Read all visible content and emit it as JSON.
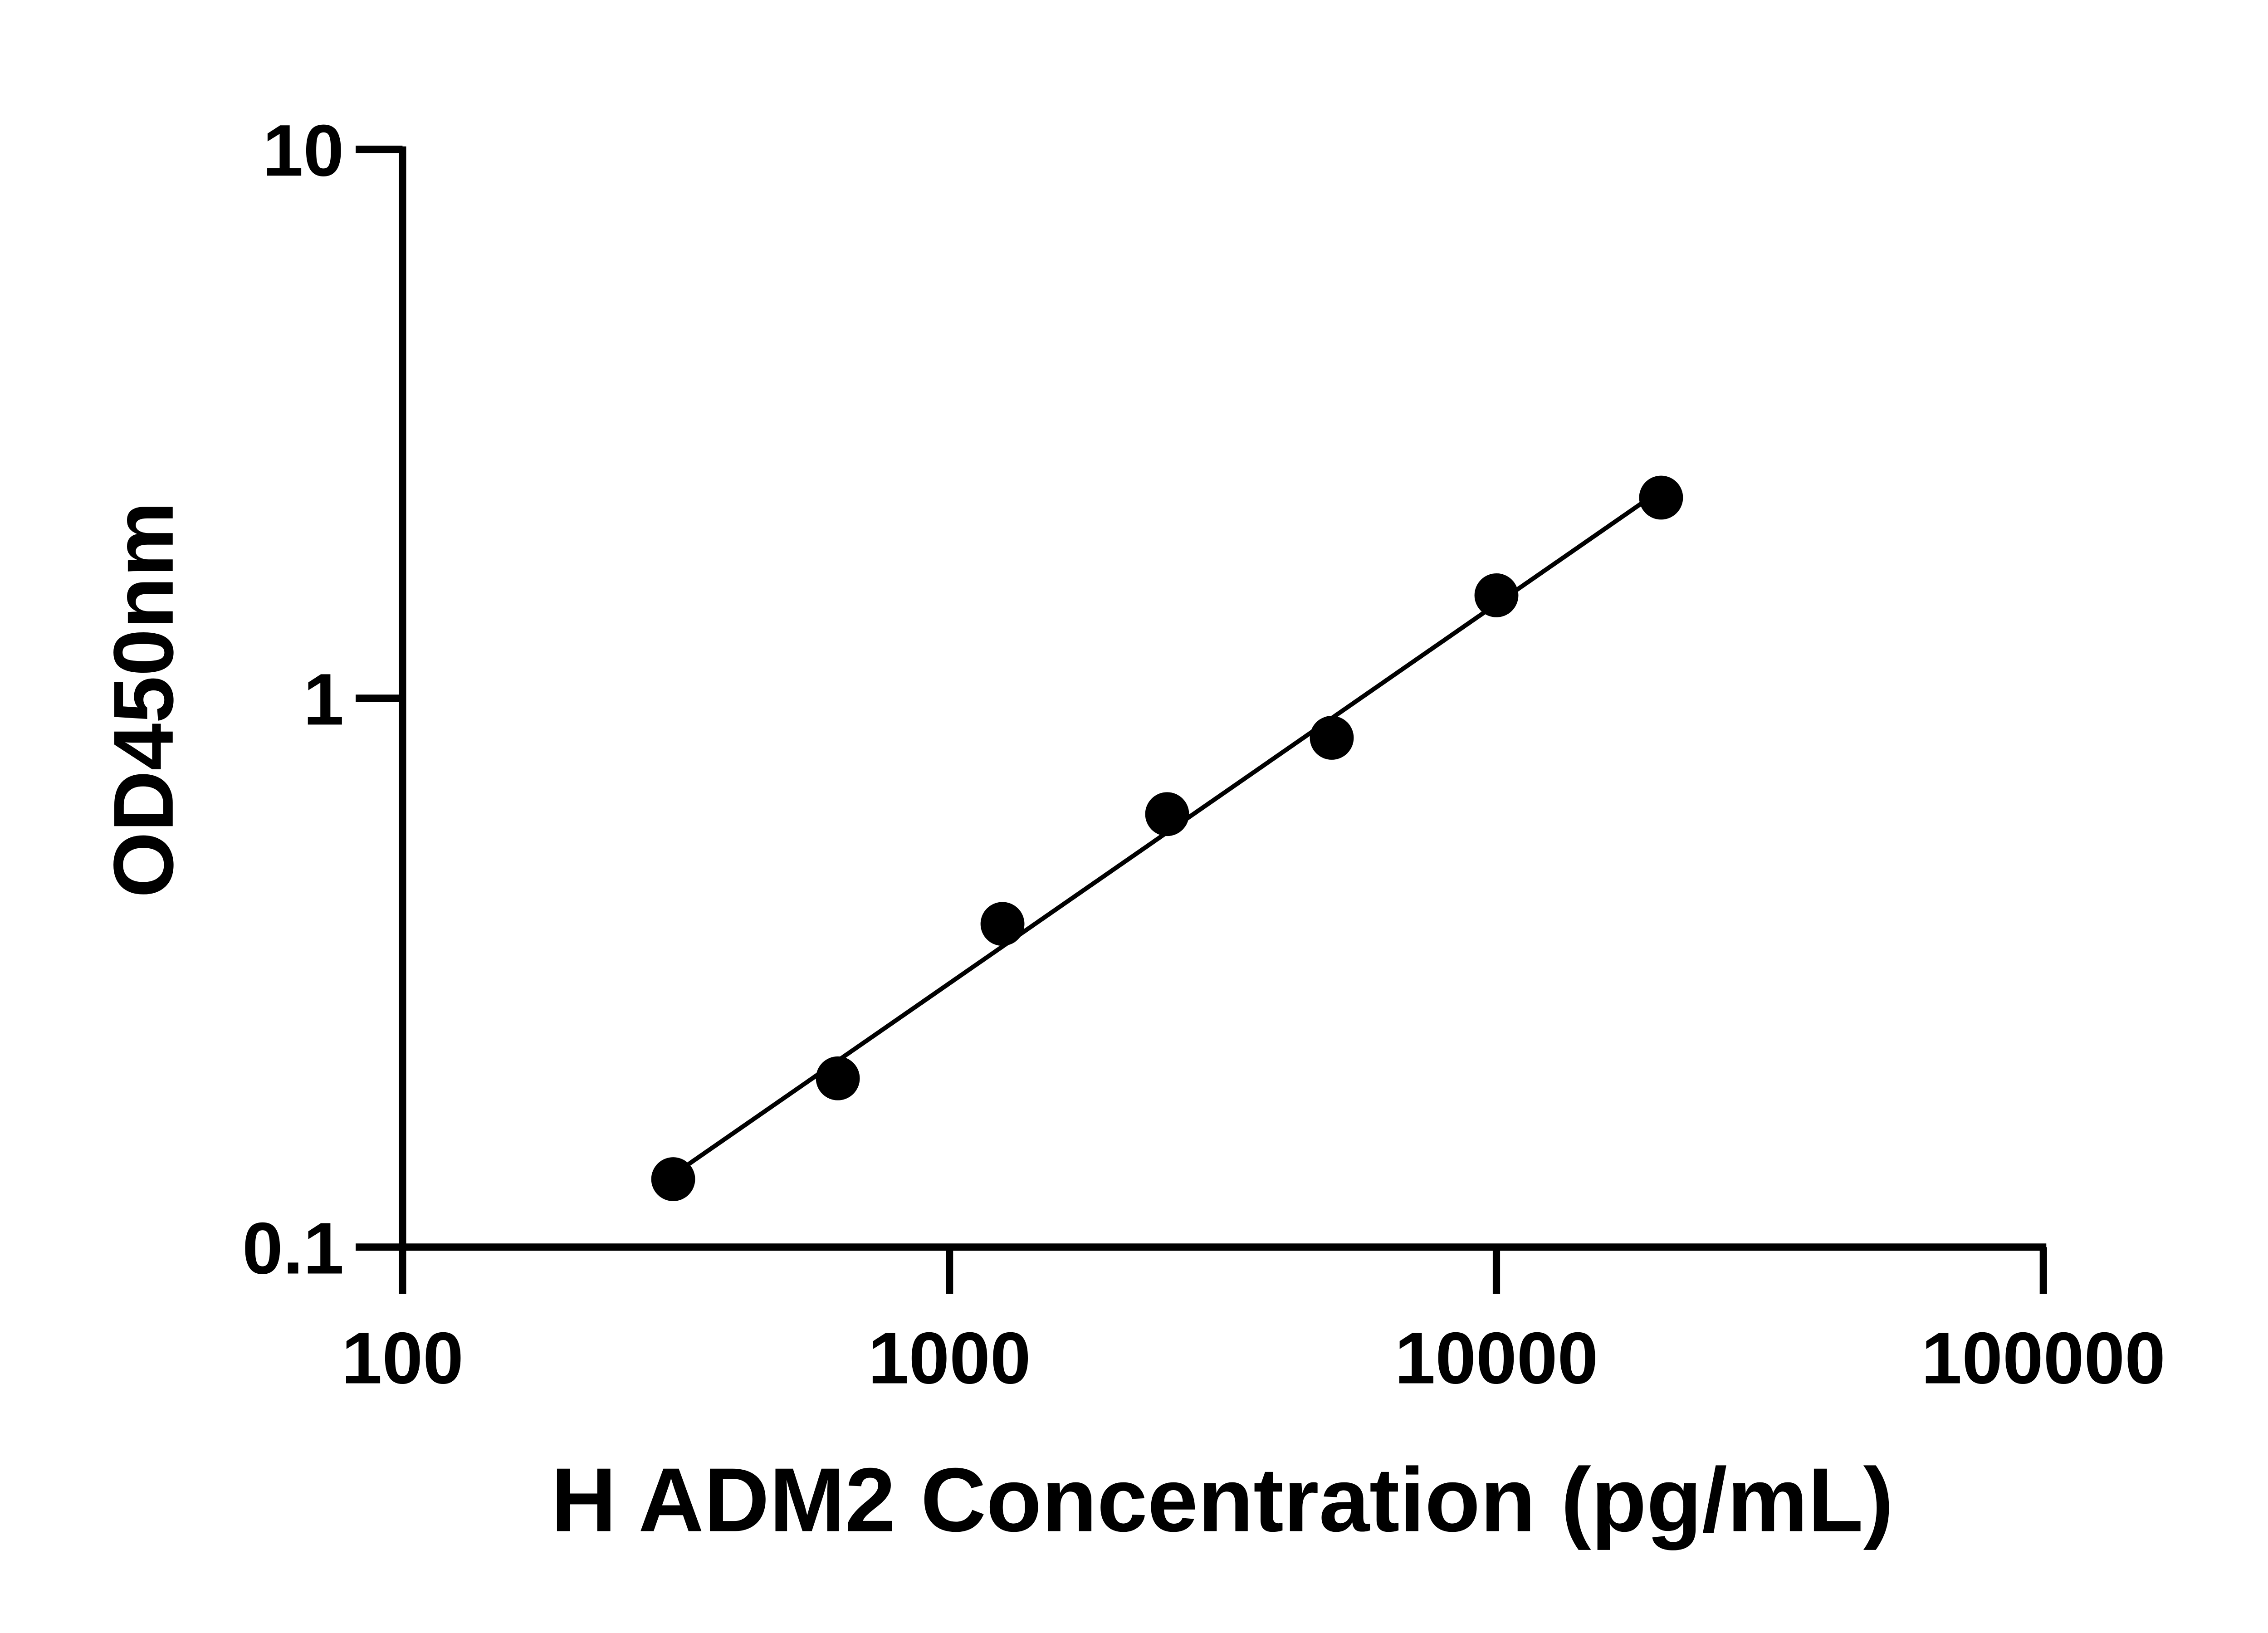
{
  "chart_data": {
    "type": "scatter",
    "title": "",
    "xlabel": "H ADM2 Concentration (pg/mL)",
    "ylabel": "OD450nm",
    "x_scale": "log",
    "y_scale": "log",
    "xlim": [
      100,
      100000
    ],
    "ylim": [
      0.1,
      10
    ],
    "x_ticks": [
      "100",
      "1000",
      "10000",
      "100000"
    ],
    "y_ticks": [
      "0.1",
      "1",
      "10"
    ],
    "grid": false,
    "legend": "none",
    "fit_line": "log-log linear",
    "colors": {
      "points": "#000000",
      "line": "#000000",
      "axes": "#000000"
    },
    "series": [
      {
        "x": [
          312.5,
          625,
          1250,
          2500,
          5000,
          10000,
          20000
        ],
        "y": [
          0.133,
          0.203,
          0.388,
          0.615,
          0.847,
          1.54,
          2.32
        ]
      }
    ]
  }
}
